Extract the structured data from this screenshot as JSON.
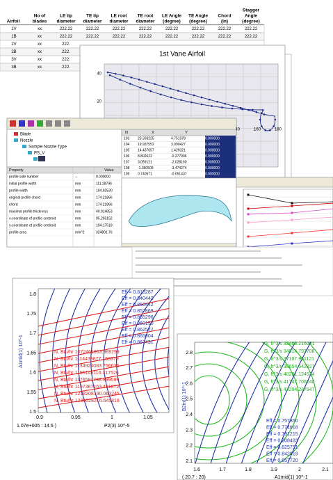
{
  "table": {
    "headers": [
      [
        "Airfoil"
      ],
      [
        "No of",
        "blades"
      ],
      [
        "LE tip",
        "diameter"
      ],
      [
        "TE tip",
        "diameter"
      ],
      [
        "LE root",
        "diameter"
      ],
      [
        "TE root",
        "diameter"
      ],
      [
        "LE Angle",
        "(degree)"
      ],
      [
        "TE Angle",
        "(degree)"
      ],
      [
        "Chord",
        "(in)"
      ],
      [
        "Stagger",
        "Angle",
        "(degree)"
      ]
    ],
    "rows": [
      [
        "1V",
        "xx",
        "222.22",
        "222.22",
        "222.22",
        "222.22",
        "222.22",
        "222.22",
        "222.22",
        "222.22"
      ],
      [
        "1B",
        "xx",
        "222.22",
        "222.22",
        "222.22",
        "222.22",
        "222.22",
        "222.22",
        "222.22",
        "222.22"
      ],
      [
        "2V",
        "xx",
        "222."
      ],
      [
        "2B",
        "xx",
        "222."
      ],
      [
        "3V",
        "xx",
        "222."
      ],
      [
        "3B",
        "xx",
        "222."
      ]
    ]
  },
  "airfoil_chart": {
    "title": "1st Vane Airfoil",
    "yticks": [
      "40",
      "20",
      "0"
    ],
    "xticks": [
      "140",
      "160",
      "180"
    ]
  },
  "software": {
    "tree": [
      "Blade",
      "Nozzle",
      "Sample Nozzle Type",
      "PS_V",
      "SS"
    ],
    "coords": {
      "headers": [
        "N",
        "X",
        "Y"
      ],
      "rows": [
        [
          "103",
          "25.333225",
          "4.751978",
          "0.000000"
        ],
        [
          "104",
          "19.937552",
          "3.090427",
          "0.000000"
        ],
        [
          "105",
          "14.437657",
          "1.429321",
          "0.000000"
        ],
        [
          "106",
          "8.802622",
          "-0.277996",
          "0.000000"
        ],
        [
          "107",
          "3.059121",
          "-2.028160",
          "0.000000"
        ],
        [
          "108",
          "-1.360509",
          "-3.474274",
          "0.000000"
        ],
        [
          "109",
          "0.740571",
          "-0.051437",
          "0.000000"
        ]
      ]
    },
    "properties": {
      "headers": [
        "Property",
        "Value"
      ],
      "rows": [
        [
          "profile side number",
          "--",
          "0.000000"
        ],
        [
          "initial profile width",
          "mm",
          "111.28796"
        ],
        [
          "profile width",
          "mm",
          "104.92530"
        ],
        [
          "original profile chord",
          "mm",
          "174.21866"
        ],
        [
          "chord",
          "mm",
          "174.21866"
        ],
        [
          "maximal profile thickness",
          "mm",
          "40.914853"
        ],
        [
          "x-coordinate of profile centroid",
          "mm",
          "95.265152"
        ],
        [
          "y-coordinate of profile centroid",
          "mm",
          "104.17518"
        ],
        [
          "profile area",
          "mm^2",
          "324801.76"
        ]
      ]
    }
  },
  "stage_chart": {
    "xticks": [
      "1",
      "2"
    ],
    "xlabel": "Stage number",
    "status": "( 6.028    15.9 )"
  },
  "left_contour": {
    "yticks": [
      "1.8",
      "1.75",
      "1.7",
      "1.65",
      "1.6",
      "1.55",
      "1.5"
    ],
    "xticks": [
      "0.9",
      "0.95",
      "1",
      "1.05"
    ],
    "ylabel": "A1mid(1) 10^-1",
    "xlabel": "P2(3) 10^-5",
    "status": "1.07e+005 :  14.6 )",
    "eff_labels": [
      "Eff = 0.815287",
      "Eff = 0.840442",
      "Eff = 0.850442",
      "Eff = 0.852869",
      "Eff = 0.855296",
      "Eff = 0.860150",
      "Eff = 0.862577",
      "Eff = 0.865004",
      "Eff = 0.867431"
    ],
    "n_labels": [
      "N, Btu/hr  1072461003.989298",
      "N, Btu/hr  1114435877.153379",
      "N, Btu/hr  1134924083.756636",
      "N, Btu/hr  1155145110.317526",
      "N, Btu/hr  1176584798.899599",
      "N, Btu/hr  1197387163.481672",
      "N, Btu/hr  1218208190.063245",
      "N, Btu/hr  1239029216.645818"
    ]
  },
  "right_contour": {
    "yticks": [
      "2.8",
      "2.7",
      "2.6",
      "2.5",
      "2.4",
      "2.3",
      "2.2",
      "2.1"
    ],
    "xticks": [
      "1.6",
      "1.7",
      "1.8",
      "1.9",
      "2",
      "2.1"
    ],
    "ylabel": "B2m(1) 10^-1",
    "xlabel": "A1mid(1) 10^-1",
    "status": "( 20.7   :   20)",
    "g_labels": [
      "G, ft^3/s  32468.216001",
      "G, ft^3/s  34014.797708",
      "G, ft^3/s  37107.961121",
      "G, ft^3/s  38654.542827",
      "G, ft^3/s  40201.124534",
      "G, ft^3/s  41747.706240",
      "G, ft^3/s  43294.287947"
    ],
    "eff_labels": [
      "Eff = 0.757350",
      "Eff = 0.774618",
      "Eff = 0.791215",
      "Eff = 0.808483",
      "Eff = 0.825751",
      "Eff = 0.842019",
      "Eff = 0.857720"
    ]
  }
}
